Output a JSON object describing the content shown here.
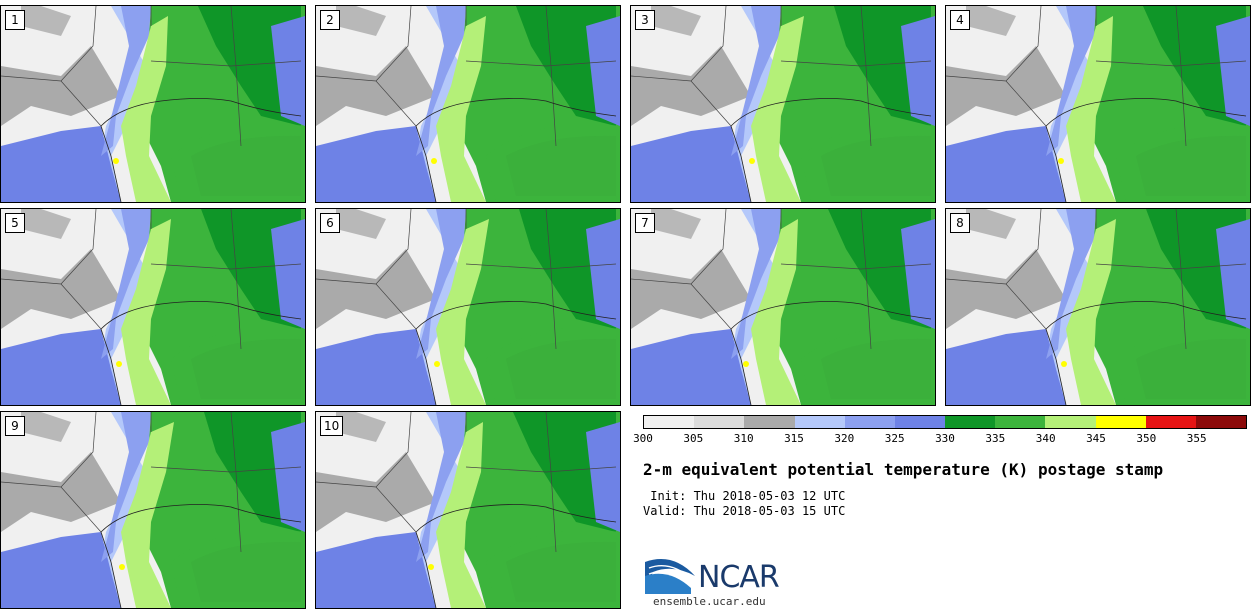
{
  "panels": [
    "1",
    "2",
    "3",
    "4",
    "5",
    "6",
    "7",
    "8",
    "9",
    "10"
  ],
  "colorbar": {
    "colors": [
      "#f0f0f0",
      "#dcdcdc",
      "#aaaaaa",
      "#b4c8fa",
      "#8ca0f0",
      "#6e82e6",
      "#0f9628",
      "#3cb43c",
      "#b4f078",
      "#ffff00",
      "#e61414",
      "#8c0a0a"
    ],
    "labels": [
      "300",
      "305",
      "310",
      "315",
      "320",
      "325",
      "330",
      "335",
      "340",
      "345",
      "350",
      "355"
    ]
  },
  "title": "2-m equivalent potential temperature (K) postage stamp",
  "init": " Init: Thu 2018-05-03 12 UTC",
  "valid": "Valid: Thu 2018-05-03 15 UTC",
  "logo": {
    "name": "NCAR",
    "icon": "ncar-swoosh-icon",
    "color": "#1a3a6b"
  },
  "site": "ensemble.ucar.edu"
}
